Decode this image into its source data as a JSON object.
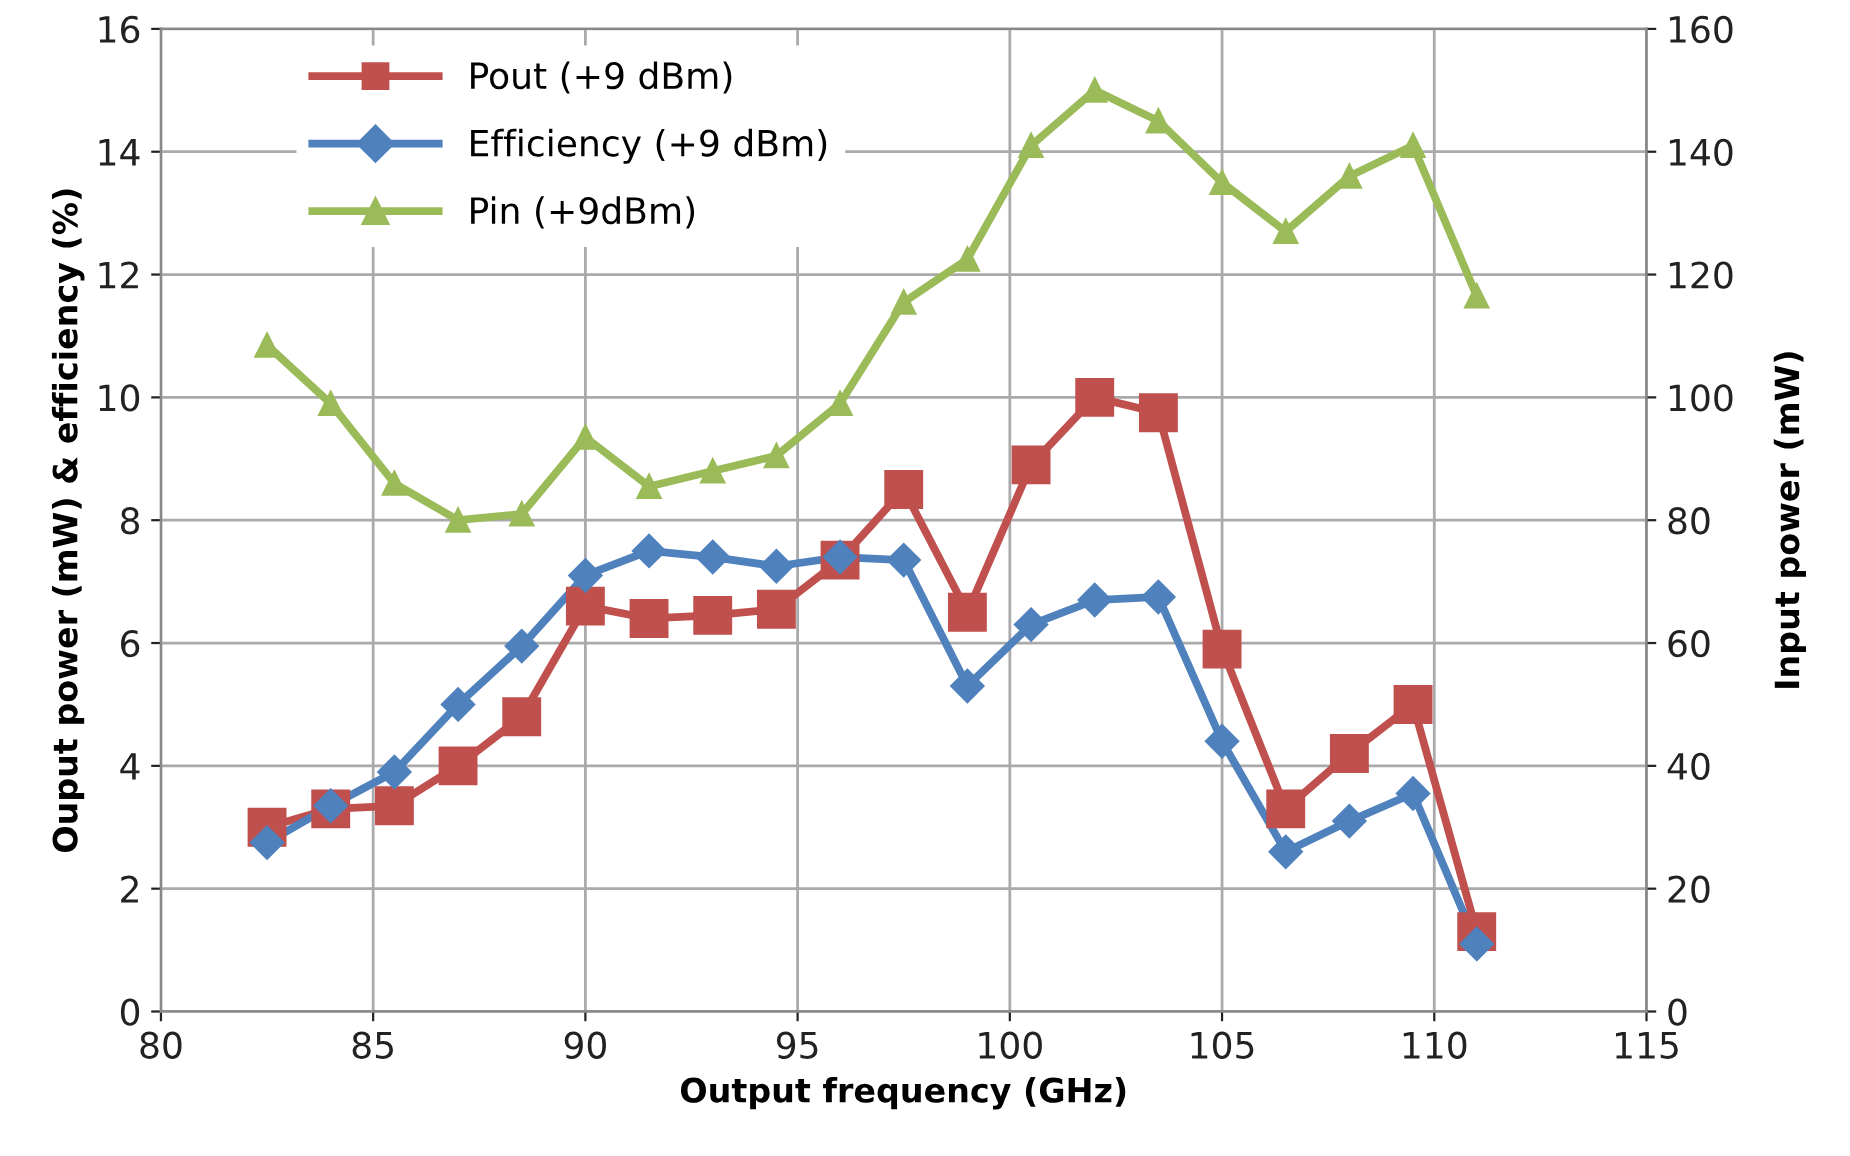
{
  "chart_data": {
    "type": "line",
    "xlabel": "Output frequency (GHz)",
    "ylabel": "Ouput power (mW) & efficiency (%)",
    "y2label": "Input power (mW)",
    "x": [
      82.5,
      84,
      85.5,
      87,
      88.5,
      90,
      91.5,
      93,
      94.5,
      96,
      97.5,
      99,
      100.5,
      102,
      103.5,
      105,
      106.5,
      108,
      109.5,
      111
    ],
    "series": [
      {
        "name": "Pout (+9 dBm)",
        "color": "#c0504d",
        "marker": "square",
        "values": [
          3.0,
          3.3,
          3.35,
          4.0,
          4.8,
          6.6,
          6.4,
          6.45,
          6.55,
          7.35,
          8.5,
          6.5,
          8.9,
          10.0,
          9.75,
          5.9,
          3.3,
          4.2,
          5.0,
          1.3
        ]
      },
      {
        "name": "Efficiency (+9 dBm)",
        "color": "#4f81bd",
        "marker": "diamond",
        "values": [
          2.75,
          3.35,
          3.9,
          5.0,
          5.95,
          7.1,
          7.5,
          7.4,
          7.25,
          7.4,
          7.35,
          5.3,
          6.3,
          6.7,
          6.75,
          4.4,
          2.6,
          3.1,
          3.55,
          1.1
        ]
      },
      {
        "name": "Pin (+9dBm)",
        "color": "#9bbb59",
        "marker": "triangle",
        "axis": "y2",
        "values": [
          108.5,
          99,
          86,
          80,
          81,
          93.5,
          85.5,
          88,
          90.5,
          99,
          115.5,
          122.5,
          141,
          150,
          145,
          135,
          127,
          136,
          141,
          116.5
        ]
      }
    ],
    "xlim": [
      80,
      115
    ],
    "xticks": [
      80,
      85,
      90,
      95,
      100,
      105,
      110,
      115
    ],
    "ylim": [
      0,
      16
    ],
    "yticks": [
      0,
      2,
      4,
      6,
      8,
      10,
      12,
      14,
      16
    ],
    "y2lim": [
      0,
      160
    ],
    "y2ticks": [
      0,
      20,
      40,
      60,
      80,
      100,
      120,
      140,
      160
    ],
    "grid": true,
    "legend": "top left"
  }
}
